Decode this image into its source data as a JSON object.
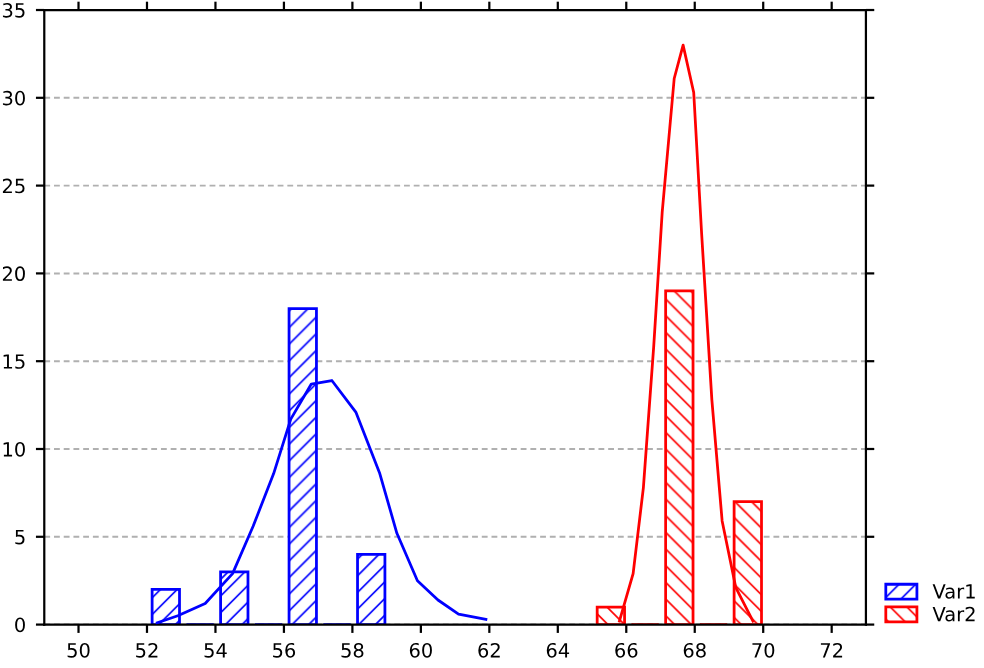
{
  "chart_data": {
    "type": "histogram",
    "series": [
      {
        "name": "Var1",
        "color": "#0000ff",
        "bins": [
          52,
          53,
          54,
          55,
          56,
          57,
          58,
          59
        ],
        "values": [
          2,
          0,
          3,
          0,
          18,
          0,
          4
        ]
      },
      {
        "name": "Var2",
        "color": "#ff0000",
        "bins": [
          65,
          66,
          67,
          68,
          69,
          70
        ],
        "values": [
          1,
          0,
          19,
          0,
          7
        ]
      },
      {
        "type": "line",
        "color": "#0000ff",
        "x": [
          52.3,
          52.9,
          53.7,
          54.5,
          55.1,
          55.7,
          56.2,
          56.8,
          57.4,
          58.1,
          58.8,
          59.3,
          59.9,
          60.5,
          61.1,
          61.9
        ],
        "values": [
          0.1,
          0.5,
          1.2,
          2.9,
          5.6,
          8.6,
          11.7,
          13.7,
          13.9,
          12.1,
          8.6,
          5.2,
          2.5,
          1.4,
          0.6,
          0.3
        ]
      },
      {
        "type": "line",
        "color": "#ff0000",
        "x": [
          65.8,
          66.2,
          66.5,
          66.8,
          67.05,
          67.4,
          67.66,
          67.97,
          68.2,
          68.5,
          68.8,
          69.2,
          69.7
        ],
        "values": [
          0.2,
          2.9,
          7.8,
          15.8,
          23.5,
          31.1,
          33,
          30.3,
          22.3,
          12.8,
          5.9,
          2.1,
          0.2
        ]
      }
    ],
    "xlim": [
      49,
      73
    ],
    "xticks": [
      50,
      52,
      54,
      56,
      58,
      60,
      62,
      64,
      66,
      68,
      70,
      72
    ],
    "ylim": [
      0,
      35
    ],
    "yticks": [
      0,
      5,
      10,
      15,
      20,
      25,
      30,
      35
    ],
    "grid": "y",
    "legend": "bottom right"
  }
}
